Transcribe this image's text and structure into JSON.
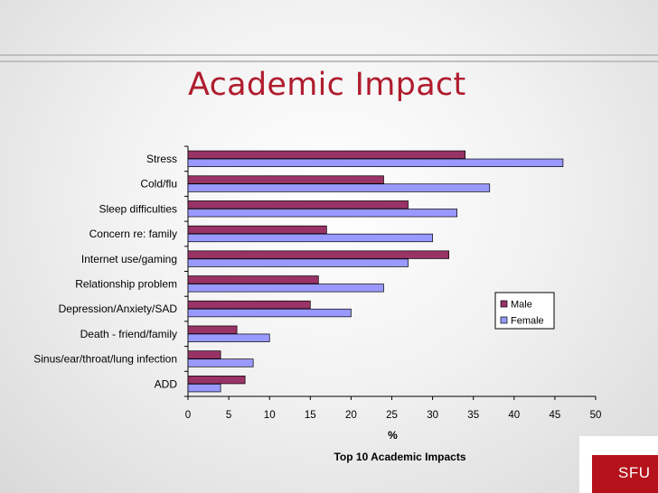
{
  "slide": {
    "title": "Academic Impact"
  },
  "logo": {
    "text": "SFU",
    "color": "#b5121b"
  },
  "chart_data": {
    "type": "bar",
    "orientation": "horizontal",
    "categories": [
      "Stress",
      "Cold/flu",
      "Sleep difficulties",
      "Concern re: family",
      "Internet use/gaming",
      "Relationship problem",
      "Depression/Anxiety/SAD",
      "Death - friend/family",
      "Sinus/ear/throat/lung infection",
      "ADD"
    ],
    "series": [
      {
        "name": "Male",
        "color": "#993366",
        "values": [
          34,
          24,
          27,
          17,
          32,
          16,
          15,
          6,
          4,
          7
        ]
      },
      {
        "name": "Female",
        "color": "#9999ff",
        "values": [
          46,
          37,
          33,
          30,
          27,
          24,
          20,
          10,
          8,
          4
        ]
      }
    ],
    "xlabel": "%",
    "caption": "Top 10 Academic Impacts",
    "xlim": [
      0,
      50
    ],
    "xticks": [
      0,
      5,
      10,
      15,
      20,
      25,
      30,
      35,
      40,
      45,
      50
    ],
    "grid": false,
    "legend_position": "right"
  }
}
